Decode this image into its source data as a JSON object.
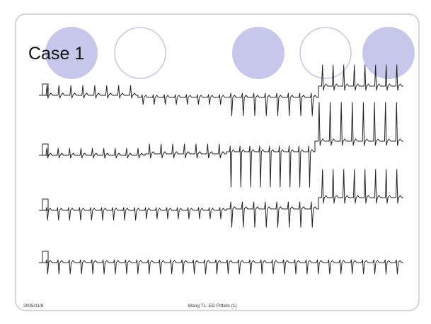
{
  "slide": {
    "title": "Case 1",
    "footer_date": "2005/11/8",
    "footer_text": "Wang TL: ED Pitfalls (1)"
  }
}
